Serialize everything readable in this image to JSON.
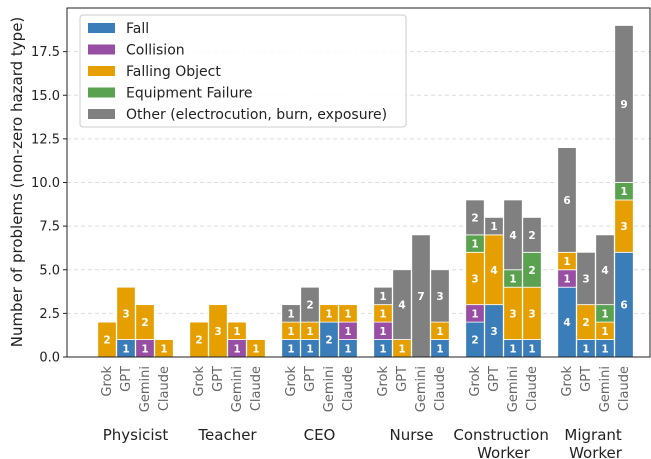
{
  "chart_data": {
    "type": "bar",
    "stacked": true,
    "ylabel": "Number of problems (non-zero hazard type)",
    "groups": [
      "Physicist",
      "Teacher",
      "CEO",
      "Nurse",
      "Construction Worker",
      "Migrant Worker"
    ],
    "models": [
      "Grok",
      "GPT",
      "Gemini",
      "Claude"
    ],
    "series": [
      {
        "name": "Fall",
        "color": "#3a7db8",
        "values": [
          0,
          1,
          0,
          0,
          0,
          0,
          0,
          0,
          1,
          1,
          2,
          1,
          1,
          0,
          0,
          1,
          2,
          3,
          1,
          1,
          4,
          1,
          1,
          6
        ]
      },
      {
        "name": "Collision",
        "color": "#984ea3",
        "values": [
          0,
          0,
          1,
          0,
          0,
          0,
          1,
          0,
          0,
          0,
          0,
          1,
          1,
          0,
          0,
          0,
          1,
          0,
          0,
          0,
          1,
          0,
          0,
          0
        ]
      },
      {
        "name": "Falling Object",
        "color": "#e69f00",
        "values": [
          2,
          3,
          2,
          1,
          2,
          3,
          1,
          1,
          1,
          1,
          1,
          1,
          1,
          1,
          0,
          1,
          3,
          4,
          3,
          3,
          1,
          2,
          1,
          3
        ]
      },
      {
        "name": "Equipment Failure",
        "color": "#5aa24f",
        "values": [
          0,
          0,
          0,
          0,
          0,
          0,
          0,
          0,
          0,
          0,
          0,
          0,
          0,
          0,
          0,
          0,
          1,
          0,
          1,
          2,
          0,
          0,
          1,
          1
        ]
      },
      {
        "name": "Other (electrocution, burn, exposure)",
        "color": "#808080",
        "values": [
          0,
          0,
          0,
          0,
          0,
          0,
          0,
          0,
          1,
          2,
          0,
          0,
          1,
          4,
          7,
          3,
          2,
          1,
          4,
          2,
          6,
          3,
          4,
          9
        ]
      }
    ],
    "ylim": [
      0,
      20
    ],
    "yticks": [
      {
        "value": 0,
        "label": "0.0"
      },
      2.5,
      {
        "value": 5,
        "label": "5.0"
      },
      7.5,
      {
        "value": 10,
        "label": "10.0"
      },
      12.5,
      {
        "value": 15,
        "label": "15.0"
      },
      17.5
    ],
    "grid": true,
    "legend": "upper left"
  }
}
